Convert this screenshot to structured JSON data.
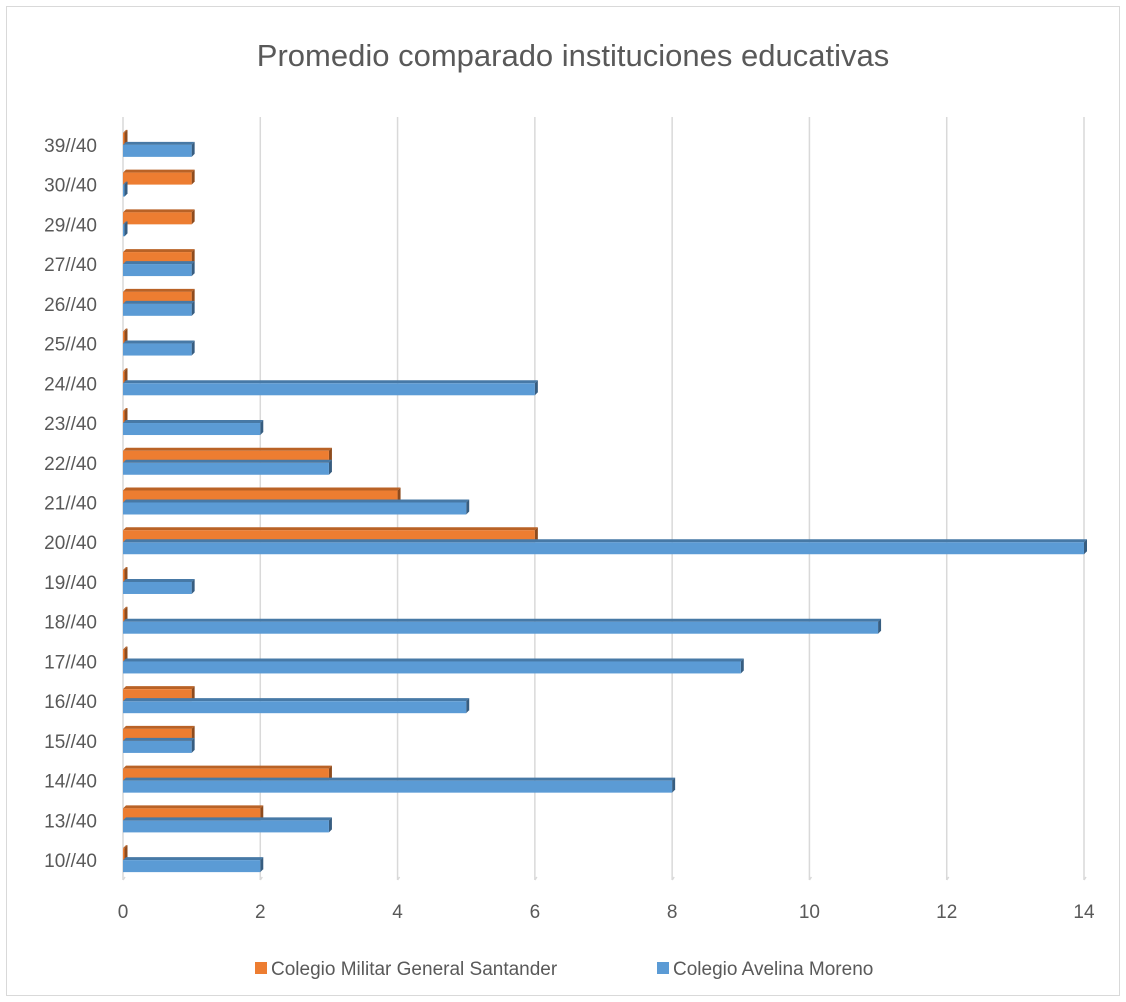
{
  "chart_data": {
    "type": "bar",
    "orientation": "horizontal",
    "title": "Promedio comparado instituciones educativas",
    "xlabel": "",
    "ylabel": "",
    "xlim": [
      0,
      14
    ],
    "x_ticks": [
      "0",
      "2",
      "4",
      "6",
      "8",
      "10",
      "12",
      "14"
    ],
    "grid": "vertical",
    "legend_position": "bottom",
    "categories": [
      "10//40",
      "13//40",
      "14//40",
      "15//40",
      "16//40",
      "17//40",
      "18//40",
      "19//40",
      "20//40",
      "21//40",
      "22//40",
      "23//40",
      "24//40",
      "25//40",
      "26//40",
      "27//40",
      "29//40",
      "30//40",
      "39//40"
    ],
    "series": [
      {
        "name": "Colegio Militar General Santander",
        "color": "#ed7d31",
        "values": [
          0,
          2,
          3,
          1,
          1,
          0,
          0,
          0,
          6,
          4,
          3,
          0,
          0,
          0,
          1,
          1,
          1,
          1,
          0
        ]
      },
      {
        "name": "Colegio Avelina Moreno",
        "color": "#5b9bd5",
        "values": [
          2,
          3,
          8,
          1,
          5,
          9,
          11,
          1,
          14,
          5,
          3,
          2,
          6,
          1,
          1,
          1,
          0,
          0,
          1
        ]
      }
    ]
  }
}
